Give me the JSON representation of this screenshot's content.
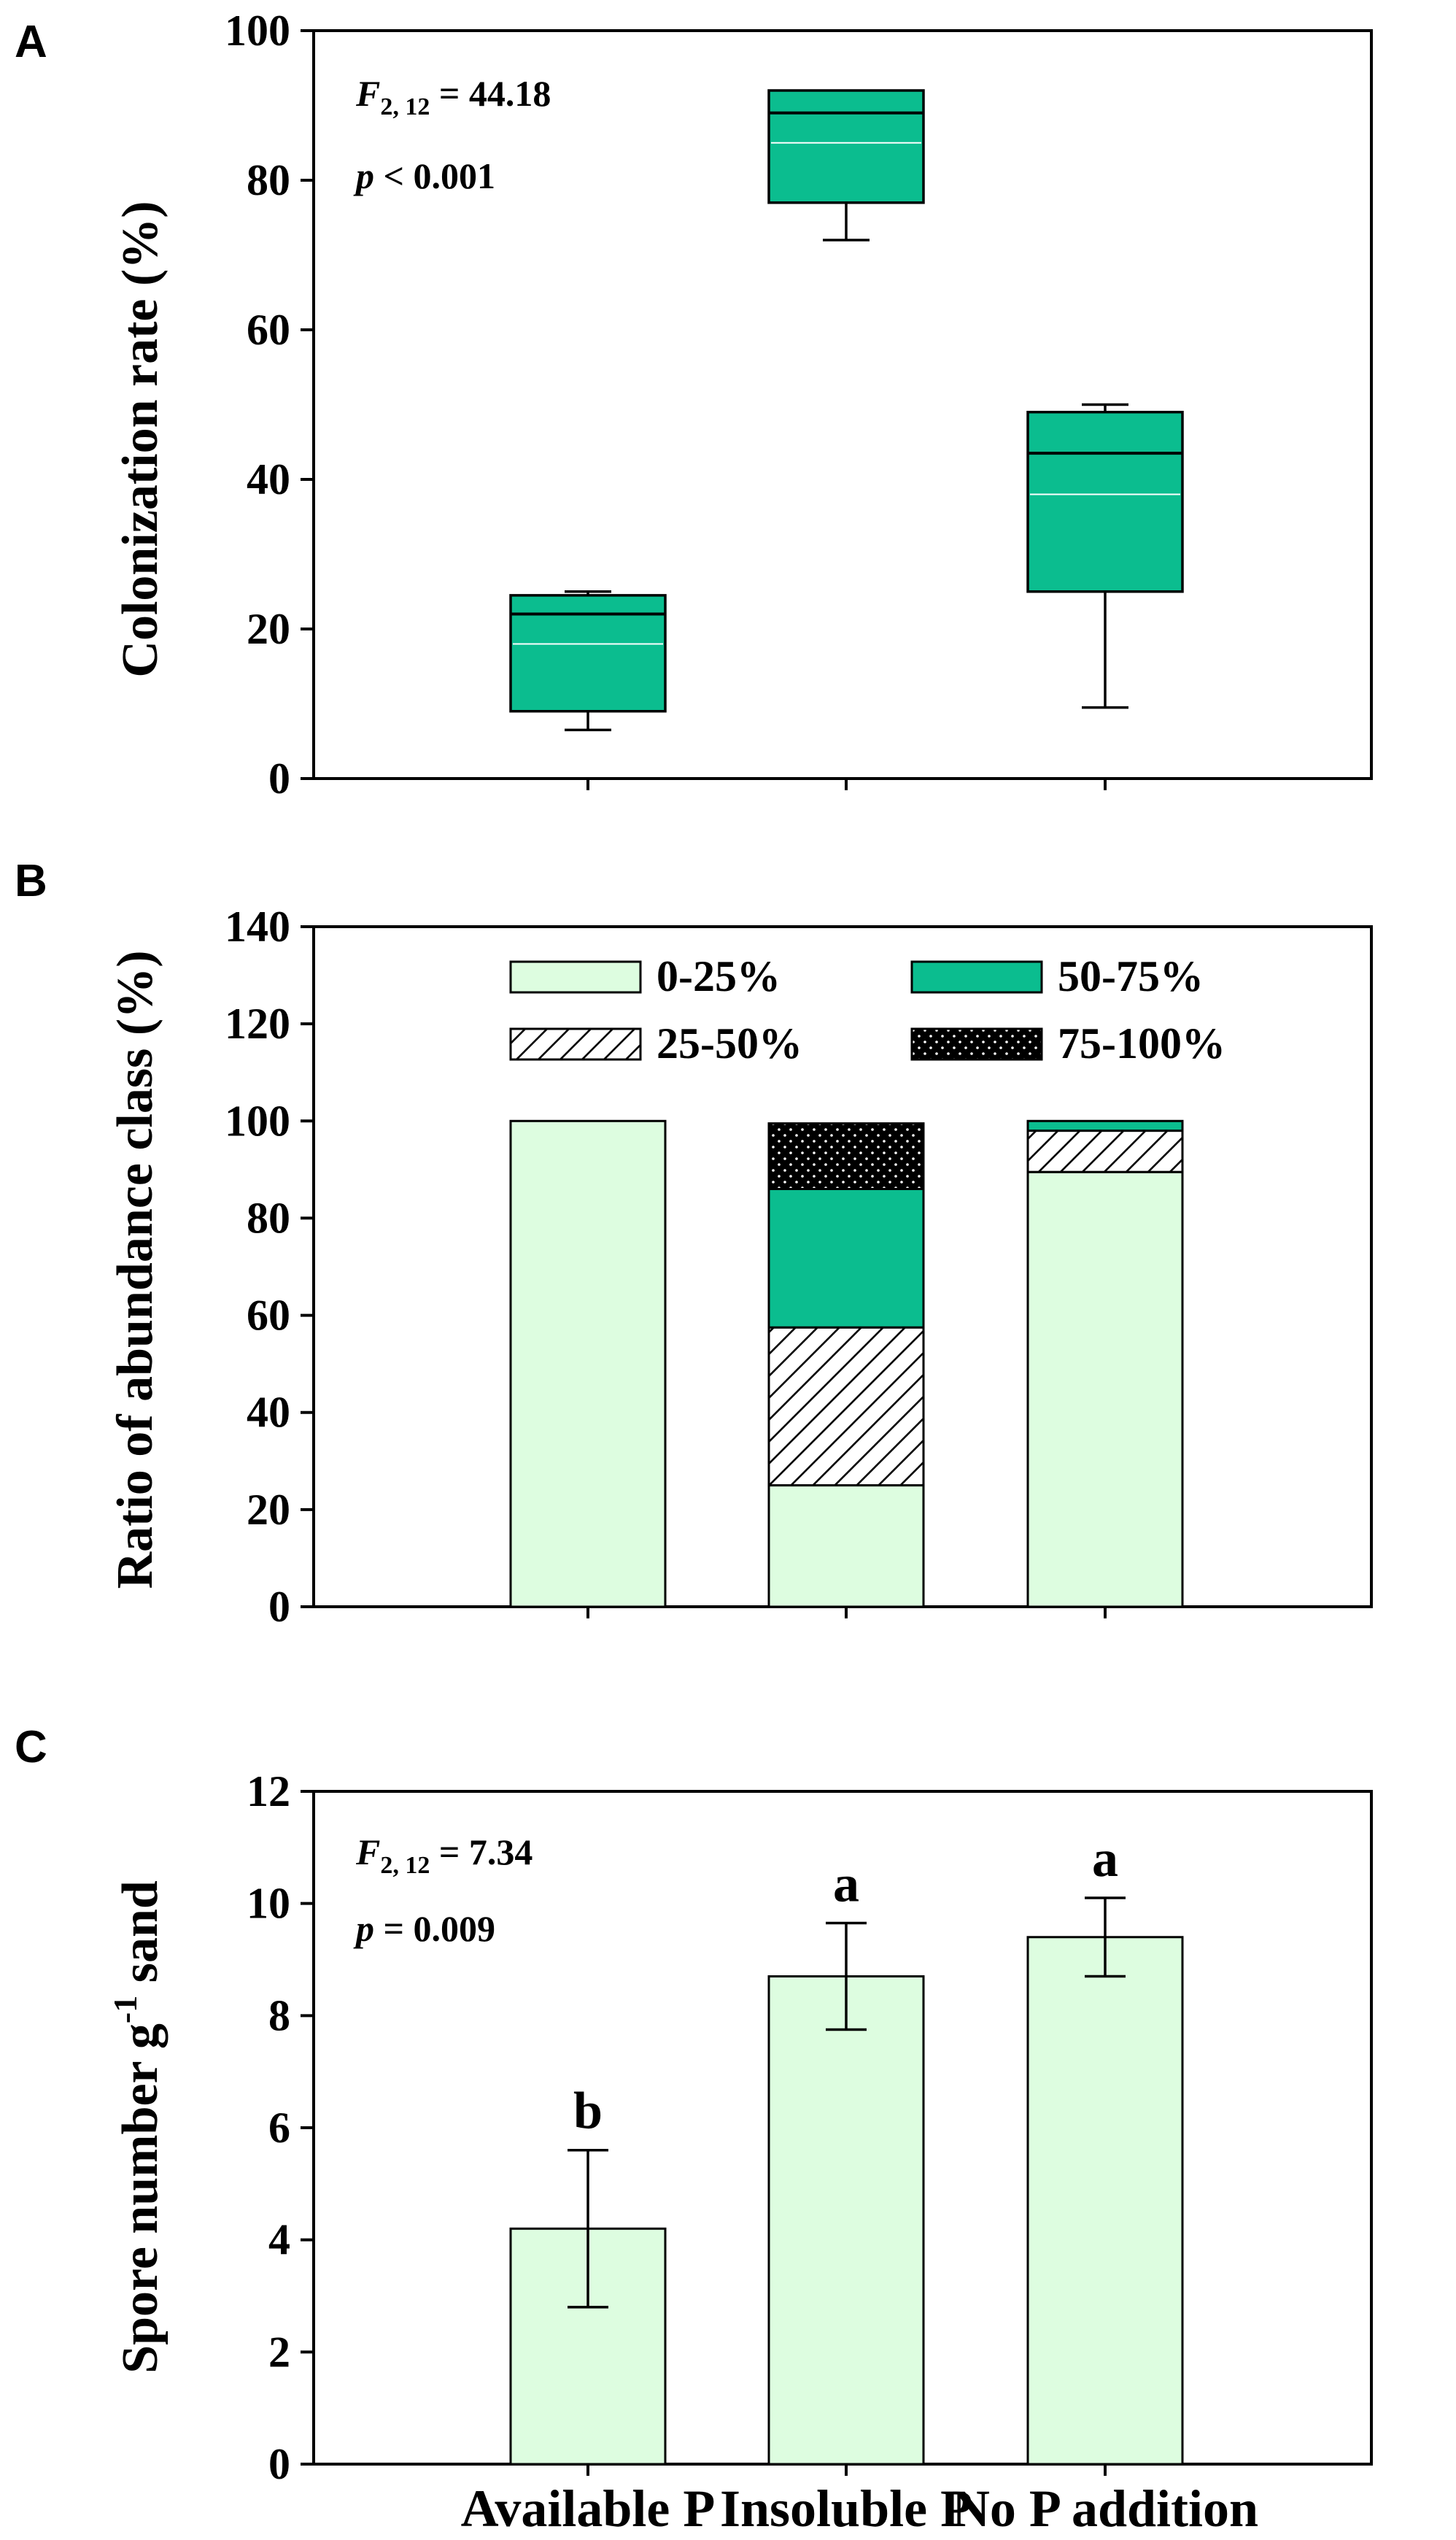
{
  "figure": {
    "categories": [
      "Available P",
      "Insoluble P",
      "No P addition"
    ],
    "colors": {
      "teal": "#0bbd8f",
      "light_green": "#ddfde0",
      "black": "#000000",
      "white": "#ffffff"
    }
  },
  "chart_data": [
    {
      "panel": "A",
      "type": "box",
      "ylabel": "Colonization rate (%)",
      "ylim": [
        0,
        100
      ],
      "yticks": [
        0,
        20,
        40,
        60,
        80,
        100
      ],
      "stats": {
        "f_main": "F",
        "f_sub": "2, 12",
        "f_value": " = 44.18",
        "p_main": "p",
        "p_value": " < 0.001"
      },
      "categories": [
        "Available P",
        "Insoluble P",
        "No P addition"
      ],
      "boxes": [
        {
          "category": "Available P",
          "whisker_low": 6.5,
          "q1": 9,
          "median": 22,
          "mean": 18,
          "q3": 24.5,
          "whisker_high": 25
        },
        {
          "category": "Insoluble P",
          "whisker_low": 72,
          "q1": 77,
          "median": 89,
          "mean": 85,
          "q3": 92,
          "whisker_high": 92
        },
        {
          "category": "No P addition",
          "whisker_low": 9.5,
          "q1": 25,
          "median": 43.5,
          "mean": 38,
          "q3": 49,
          "whisker_high": 50
        }
      ]
    },
    {
      "panel": "B",
      "type": "stacked-bar",
      "ylabel": "Ratio of abundance class (%)",
      "ylim": [
        0,
        140
      ],
      "yticks": [
        0,
        20,
        40,
        60,
        80,
        100,
        120,
        140
      ],
      "categories": [
        "Available P",
        "Insoluble P",
        "No P addition"
      ],
      "series": [
        {
          "name": "0-25%",
          "values": [
            100,
            25,
            89.5
          ]
        },
        {
          "name": "25-50%",
          "values": [
            0,
            32.5,
            8.5
          ]
        },
        {
          "name": "50-75%",
          "values": [
            0,
            28.5,
            2
          ]
        },
        {
          "name": "75-100%",
          "values": [
            0,
            13.5,
            0
          ]
        }
      ],
      "legend": {
        "placement": "top",
        "order": [
          "0-25%",
          "50-75%",
          "25-50%",
          "75-100%"
        ]
      }
    },
    {
      "panel": "C",
      "type": "bar",
      "ylabel_main": "Spore number  g",
      "ylabel_sup": "-1",
      "ylabel_tail": " sand",
      "ylim": [
        0,
        12
      ],
      "yticks": [
        0,
        2,
        4,
        6,
        8,
        10,
        12
      ],
      "stats": {
        "f_main": "F",
        "f_sub": "2, 12",
        "f_value": " = 7.34",
        "p_main": "p",
        "p_value": " = 0.009"
      },
      "categories": [
        "Available P",
        "Insoluble P",
        "No P addition"
      ],
      "values": [
        4.2,
        8.7,
        9.4
      ],
      "errors": [
        1.4,
        0.95,
        0.7
      ],
      "significance": [
        "b",
        "a",
        "a"
      ]
    }
  ]
}
